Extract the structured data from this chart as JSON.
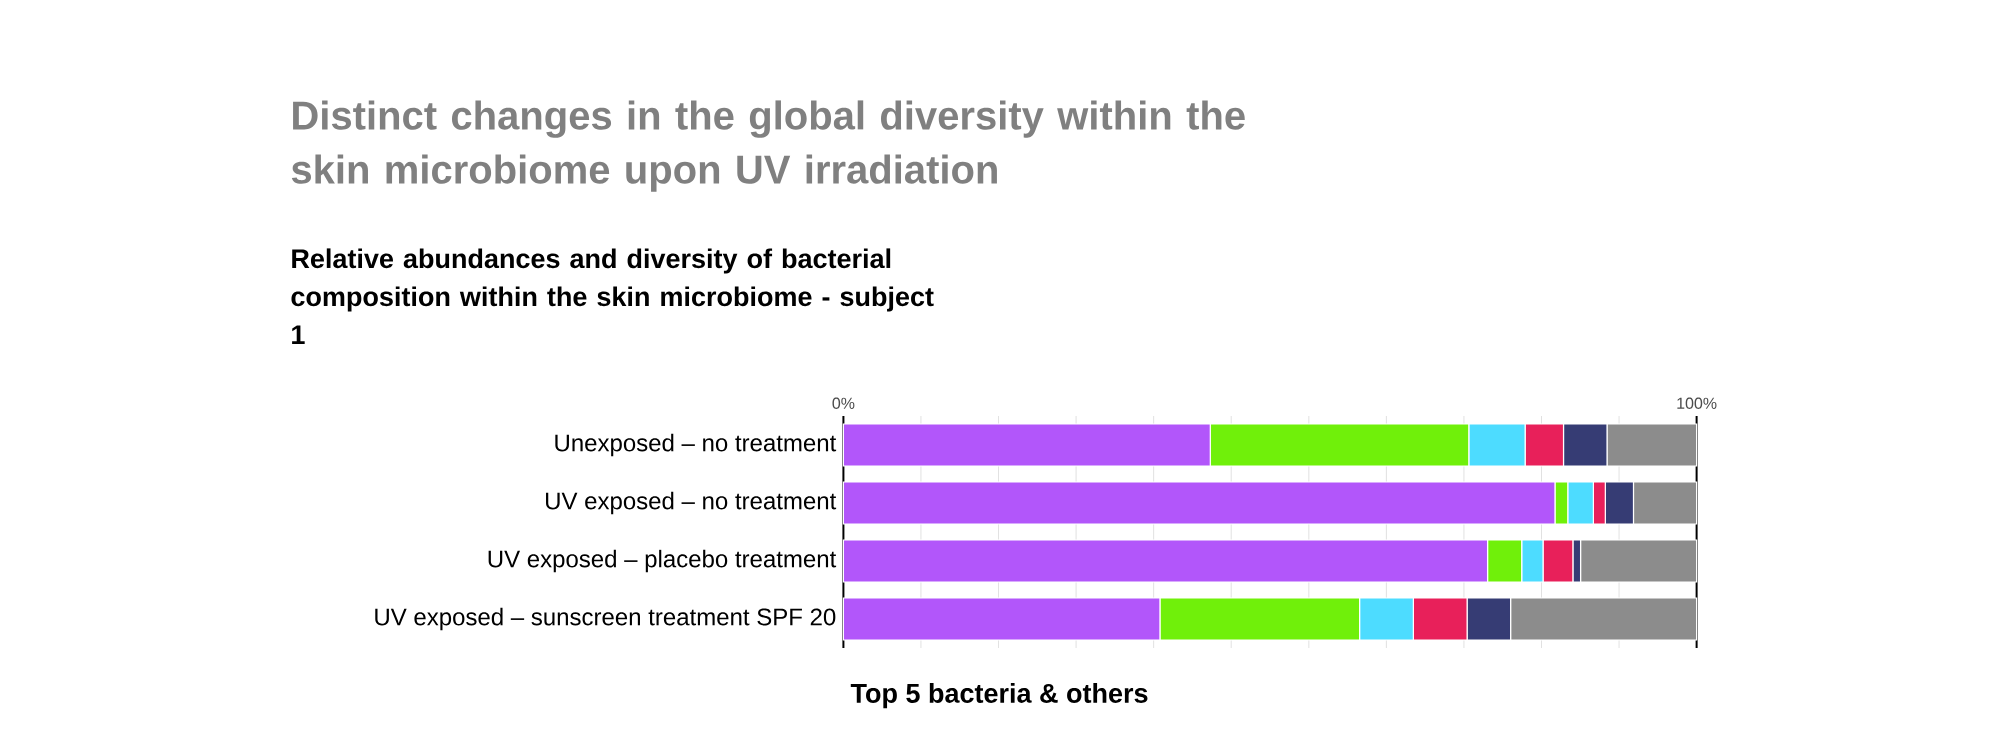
{
  "chart_data": {
    "type": "bar",
    "orientation": "horizontal",
    "stacked": true,
    "title": "Distinct changes in the global diversity within the skin microbiome upon UV irradiation",
    "subtitle": "Relative abundances and diversity of bacterial composition within the skin microbiome - subject 1",
    "xlabel": "Top 5 bacteria & others",
    "categories": [
      "Unexposed – no treatment",
      "UV exposed – no treatment",
      "UV exposed – placebo treatment",
      "UV exposed – sunscreen treatment SPF 20"
    ],
    "series": [
      {
        "color": "#b256fa",
        "values": [
          43.0,
          83.4,
          75.5,
          37.1
        ]
      },
      {
        "color": "#70f00a",
        "values": [
          30.3,
          1.5,
          4.0,
          23.4
        ]
      },
      {
        "color": "#4ddcff",
        "values": [
          6.6,
          3.0,
          2.5,
          6.3
        ]
      },
      {
        "color": "#e8205a",
        "values": [
          4.5,
          1.4,
          3.5,
          6.3
        ]
      },
      {
        "color": "#363c74",
        "values": [
          5.1,
          3.3,
          0.9,
          5.1
        ]
      },
      {
        "color": "#8c8c8c",
        "values": [
          10.5,
          7.4,
          13.6,
          21.8
        ]
      }
    ],
    "xlim": [
      0,
      100
    ],
    "xticks": [
      {
        "value": 0,
        "label": "0%"
      },
      {
        "value": 9.09,
        "label": null
      },
      {
        "value": 18.18,
        "label": null
      },
      {
        "value": 27.27,
        "label": null
      },
      {
        "value": 36.36,
        "label": null
      },
      {
        "value": 45.45,
        "label": null
      },
      {
        "value": 54.55,
        "label": null
      },
      {
        "value": 63.64,
        "label": null
      },
      {
        "value": 72.73,
        "label": null
      },
      {
        "value": 81.82,
        "label": null
      },
      {
        "value": 90.91,
        "label": null
      },
      {
        "value": 100,
        "label": "100%"
      }
    ],
    "grid": "x"
  }
}
